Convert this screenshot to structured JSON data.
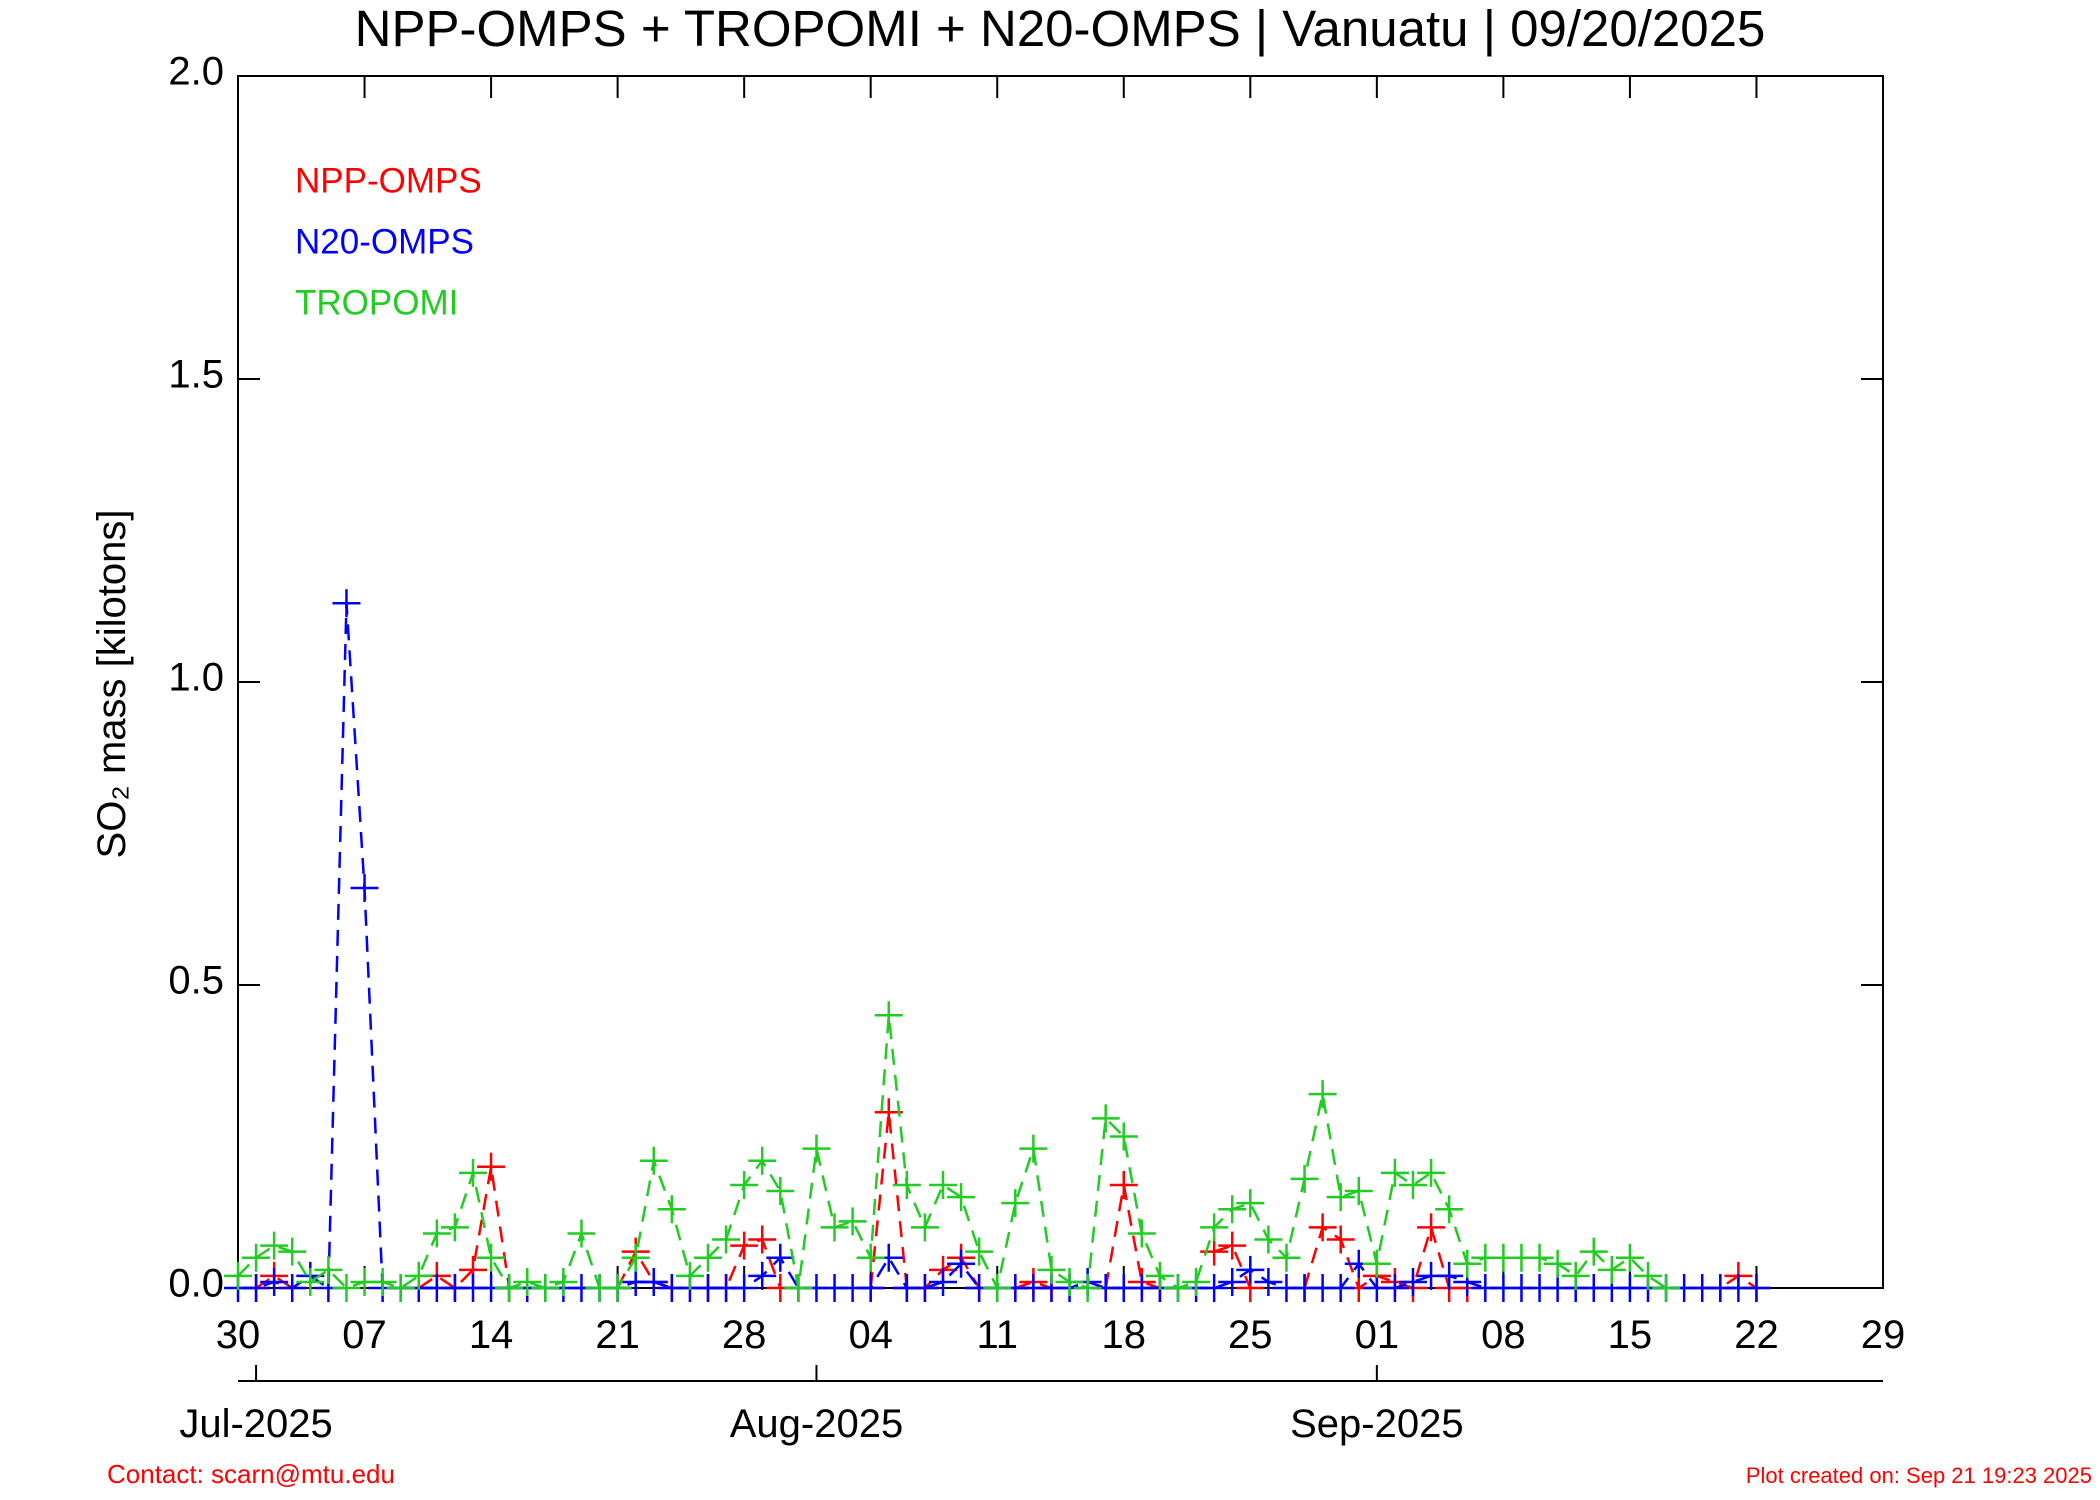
{
  "chart_data": {
    "type": "line",
    "title": "NPP-OMPS + TROPOMI + N20-OMPS | Vanuatu | 09/20/2025",
    "ylabel": "SO₂ mass [kilotons]",
    "footer_left": "Contact: scarn@mtu.edu",
    "footer_right": "Plot created on: Sep 21 19:23 2025",
    "x": [
      "2025-06-30",
      "2025-07-01",
      "2025-07-02",
      "2025-07-03",
      "2025-07-04",
      "2025-07-05",
      "2025-07-06",
      "2025-07-07",
      "2025-07-08",
      "2025-07-09",
      "2025-07-10",
      "2025-07-11",
      "2025-07-12",
      "2025-07-13",
      "2025-07-14",
      "2025-07-15",
      "2025-07-16",
      "2025-07-17",
      "2025-07-18",
      "2025-07-19",
      "2025-07-20",
      "2025-07-21",
      "2025-07-22",
      "2025-07-23",
      "2025-07-24",
      "2025-07-25",
      "2025-07-26",
      "2025-07-27",
      "2025-07-28",
      "2025-07-29",
      "2025-07-30",
      "2025-07-31",
      "2025-08-01",
      "2025-08-02",
      "2025-08-03",
      "2025-08-04",
      "2025-08-05",
      "2025-08-06",
      "2025-08-07",
      "2025-08-08",
      "2025-08-09",
      "2025-08-10",
      "2025-08-11",
      "2025-08-12",
      "2025-08-13",
      "2025-08-14",
      "2025-08-15",
      "2025-08-16",
      "2025-08-17",
      "2025-08-18",
      "2025-08-19",
      "2025-08-20",
      "2025-08-21",
      "2025-08-22",
      "2025-08-23",
      "2025-08-24",
      "2025-08-25",
      "2025-08-26",
      "2025-08-27",
      "2025-08-28",
      "2025-08-29",
      "2025-08-30",
      "2025-08-31",
      "2025-09-01",
      "2025-09-02",
      "2025-09-03",
      "2025-09-04",
      "2025-09-05",
      "2025-09-06",
      "2025-09-07",
      "2025-09-08",
      "2025-09-09",
      "2025-09-10",
      "2025-09-11",
      "2025-09-12",
      "2025-09-13",
      "2025-09-14",
      "2025-09-15",
      "2025-09-16",
      "2025-09-17",
      "2025-09-18",
      "2025-09-19",
      "2025-09-20",
      "2025-09-21",
      "2025-09-22"
    ],
    "series": [
      {
        "name": "NPP-OMPS",
        "color": "#ff0000",
        "values": [
          null,
          0,
          0.02,
          0,
          null,
          null,
          null,
          null,
          null,
          null,
          0,
          0.02,
          0,
          0.03,
          0.2,
          0,
          null,
          null,
          null,
          null,
          null,
          0,
          0.06,
          0.01,
          0,
          null,
          0,
          0,
          0.07,
          0.08,
          0,
          null,
          null,
          null,
          null,
          0,
          0.29,
          0,
          0,
          0.03,
          0.05,
          0,
          null,
          0,
          0.01,
          0,
          null,
          null,
          0,
          0.17,
          0.01,
          0,
          null,
          null,
          0.06,
          0.07,
          0,
          null,
          null,
          0,
          0.1,
          0.08,
          0,
          0.02,
          0.01,
          0,
          0.1,
          0,
          0,
          null,
          null,
          null,
          null,
          null,
          null,
          null,
          null,
          null,
          null,
          null,
          null,
          0,
          0,
          0.02,
          0
        ]
      },
      {
        "name": "N20-OMPS",
        "color": "#0000ff",
        "values": [
          0,
          0,
          0.01,
          0,
          0.02,
          0,
          1.13,
          0.66,
          0,
          0,
          0,
          0,
          0,
          0,
          0,
          0,
          0,
          0,
          0,
          0,
          0,
          0,
          0.01,
          0.01,
          0,
          0,
          0,
          0,
          0,
          0.02,
          0.05,
          0,
          0,
          0,
          0,
          0,
          0.05,
          0,
          0,
          0.01,
          0.04,
          0,
          0,
          0,
          0,
          0,
          0,
          0.01,
          0,
          0,
          0,
          0,
          0,
          0,
          0,
          0.01,
          0.03,
          0.01,
          0,
          0,
          0,
          0,
          0.04,
          0,
          0,
          0.01,
          0.02,
          0.02,
          0.01,
          0,
          0,
          0,
          0,
          0,
          0,
          0,
          0,
          0,
          0,
          0,
          0,
          0,
          0,
          0,
          0
        ]
      },
      {
        "name": "TROPOMI",
        "color": "#22cc22",
        "values": [
          0.02,
          0.05,
          0.07,
          0.06,
          0.01,
          0.03,
          0,
          0.01,
          0.01,
          0,
          0.02,
          0.09,
          0.1,
          0.19,
          0.05,
          0,
          0.01,
          0,
          0.01,
          0.09,
          0,
          0,
          0.05,
          0.21,
          0.13,
          0.02,
          0.05,
          0.08,
          0.17,
          0.21,
          0.16,
          0,
          0.23,
          0.1,
          0.11,
          0.05,
          0.45,
          0.17,
          0.1,
          0.17,
          0.15,
          0.06,
          0,
          0.14,
          0.23,
          0.03,
          0.01,
          0,
          0.28,
          0.25,
          0.09,
          0.02,
          0,
          0.01,
          0.1,
          0.13,
          0.14,
          0.08,
          0.05,
          0.18,
          0.32,
          0.15,
          0.16,
          0.04,
          0.19,
          0.17,
          0.19,
          0.13,
          0.04,
          0.05,
          0.05,
          0.05,
          0.05,
          0.04,
          0.02,
          0.06,
          0.03,
          0.05,
          0.02,
          0,
          null,
          null,
          null,
          null,
          null
        ]
      }
    ],
    "xlim": [
      "2025-06-30",
      "2025-09-29"
    ],
    "xticks": [
      {
        "value": "2025-06-30",
        "label": "30"
      },
      {
        "value": "2025-07-07",
        "label": "07"
      },
      {
        "value": "2025-07-14",
        "label": "14"
      },
      {
        "value": "2025-07-21",
        "label": "21"
      },
      {
        "value": "2025-07-28",
        "label": "28"
      },
      {
        "value": "2025-08-04",
        "label": "04"
      },
      {
        "value": "2025-08-11",
        "label": "11"
      },
      {
        "value": "2025-08-18",
        "label": "18"
      },
      {
        "value": "2025-08-25",
        "label": "25"
      },
      {
        "value": "2025-09-01",
        "label": "01"
      },
      {
        "value": "2025-09-08",
        "label": "08"
      },
      {
        "value": "2025-09-15",
        "label": "15"
      },
      {
        "value": "2025-09-22",
        "label": "22"
      },
      {
        "value": "2025-09-29",
        "label": "29"
      }
    ],
    "month_ticks": [
      {
        "value": "2025-07-01",
        "label": "Jul-2025"
      },
      {
        "value": "2025-08-01",
        "label": "Aug-2025"
      },
      {
        "value": "2025-09-01",
        "label": "Sep-2025"
      }
    ],
    "ylim": [
      0,
      2
    ],
    "yticks": [
      {
        "value": 0,
        "label": "0.0"
      },
      0.5,
      {
        "value": 1,
        "label": "1.0"
      },
      1.5,
      {
        "value": 2,
        "label": "2.0"
      }
    ],
    "legend": "upper left",
    "grid": false
  }
}
